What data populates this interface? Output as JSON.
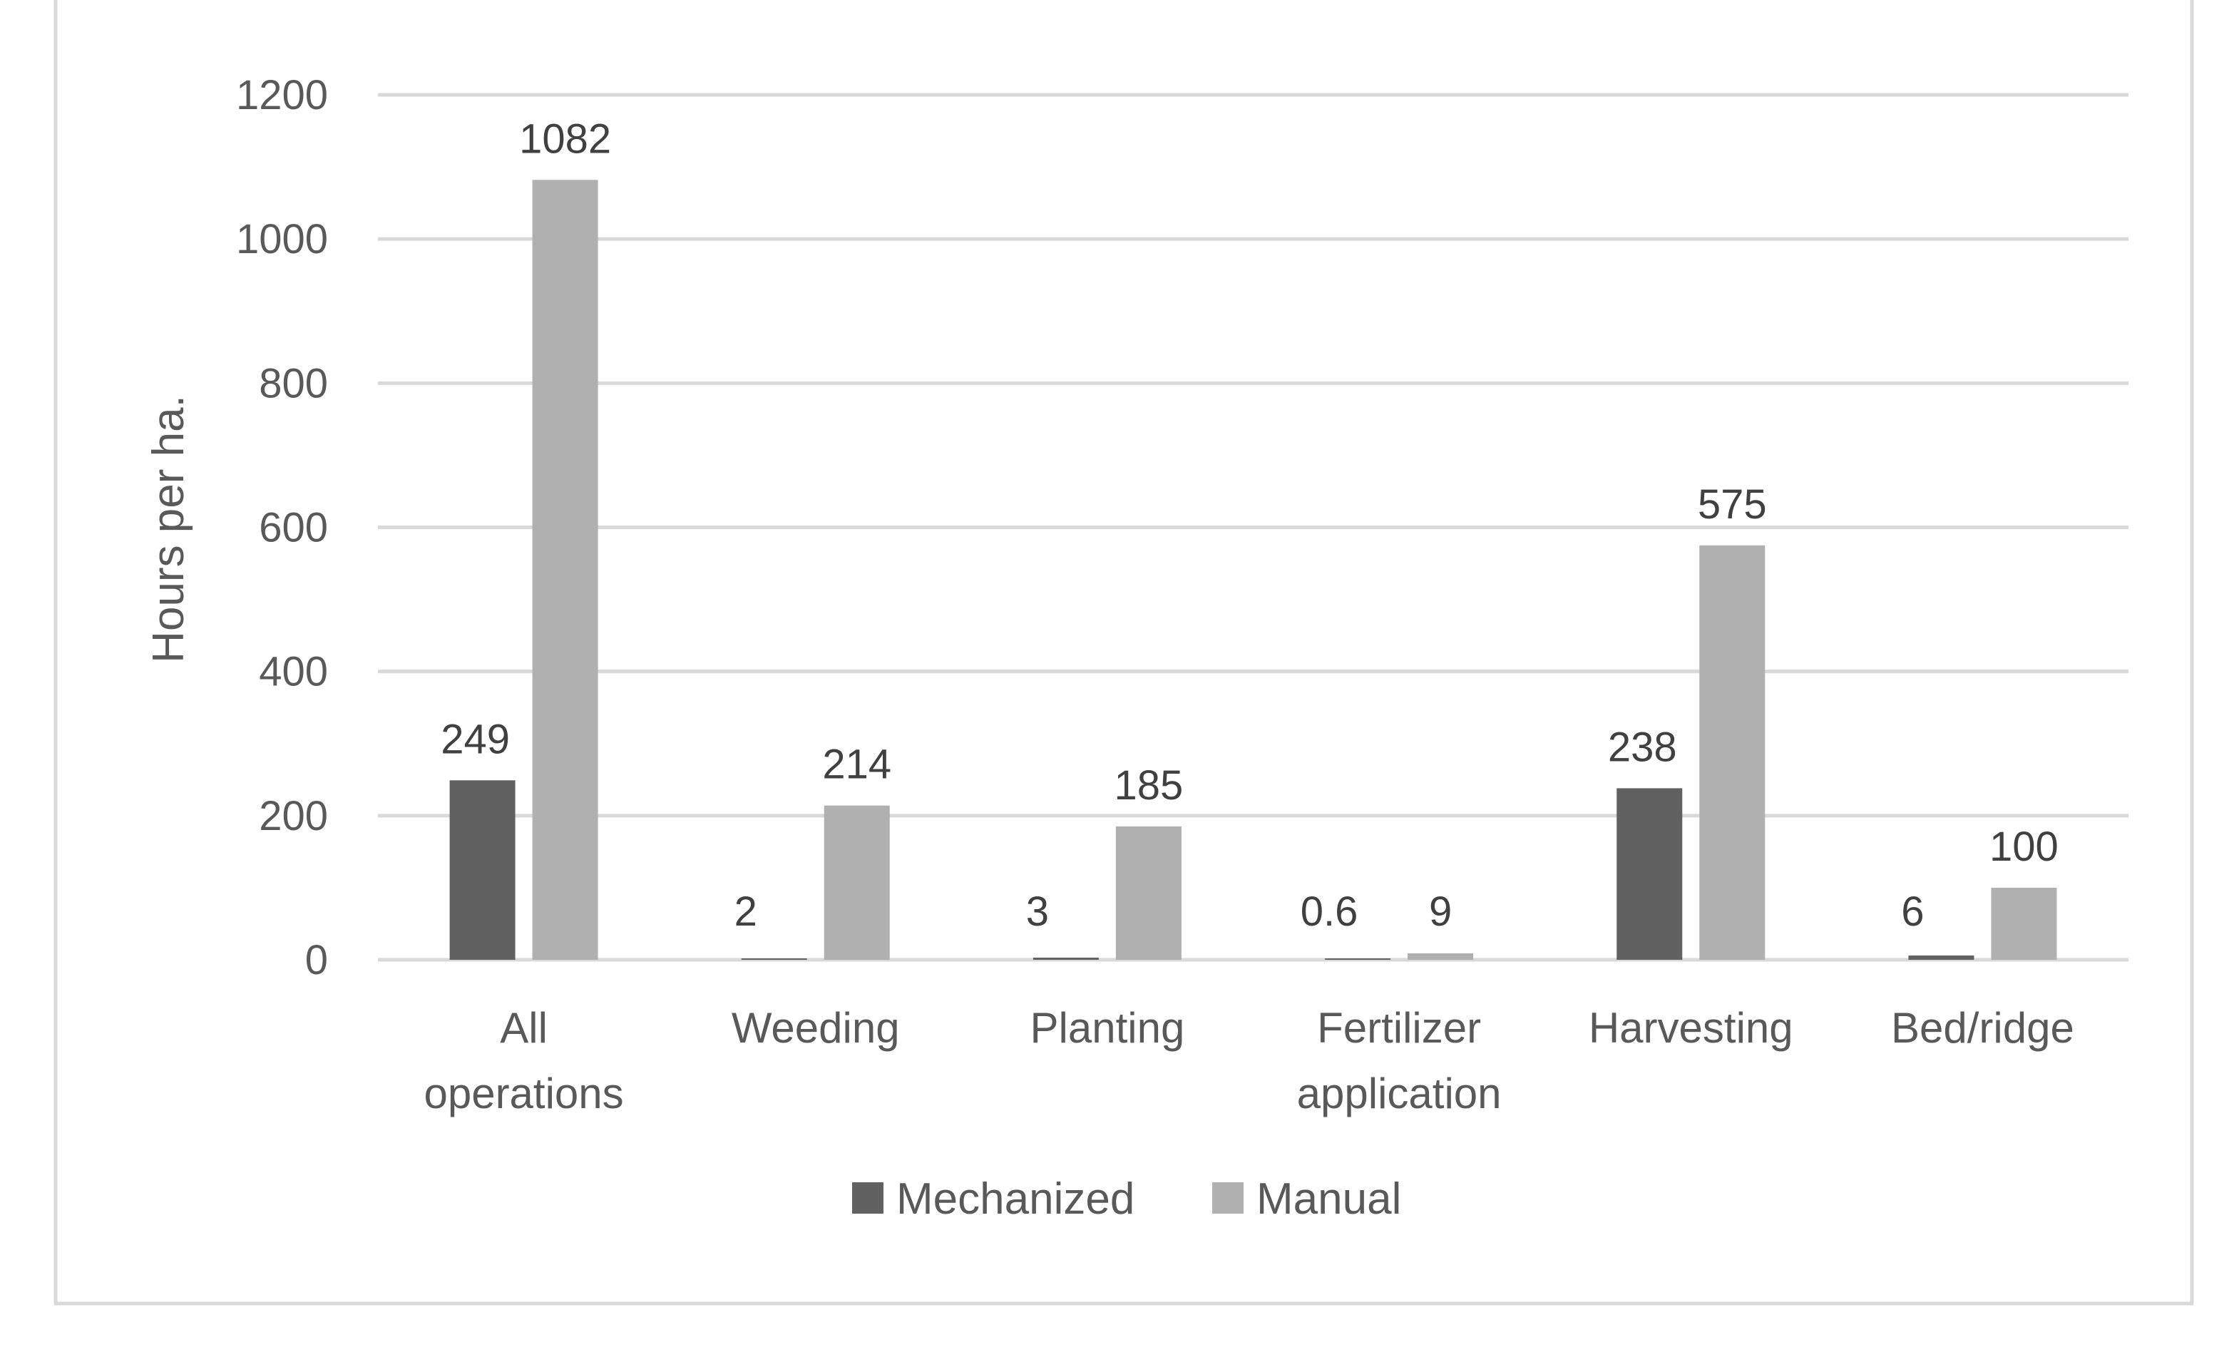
{
  "chart_data": {
    "type": "bar",
    "title": "",
    "xlabel": "",
    "ylabel": "Hours per ha.",
    "ylim": [
      0,
      1200
    ],
    "yticks": [
      "0",
      "200",
      "400",
      "600",
      "800",
      "1000",
      "1200"
    ],
    "grid": true,
    "legend_position": "bottom",
    "categories": [
      [
        "All",
        "operations"
      ],
      [
        "Weeding"
      ],
      [
        "Planting"
      ],
      [
        "Fertilizer",
        "application"
      ],
      [
        "Harvesting"
      ],
      [
        "Bed/ridge"
      ]
    ],
    "series": [
      {
        "name": "Mechanized",
        "color": "#616161",
        "values": [
          249,
          2,
          3,
          0.6,
          238,
          6
        ],
        "labels": [
          "249",
          "2",
          "3",
          "0.6",
          "238",
          "6"
        ]
      },
      {
        "name": "Manual",
        "color": "#b0b0b0",
        "values": [
          1082,
          214,
          185,
          9,
          575,
          100
        ],
        "labels": [
          "1082",
          "214",
          "185",
          "9",
          "575",
          "100"
        ]
      }
    ]
  },
  "colors": {
    "gridline": "#d9d9d9",
    "axis": "#d9d9d9",
    "border": "#d9d9d9",
    "text": "#595959"
  }
}
